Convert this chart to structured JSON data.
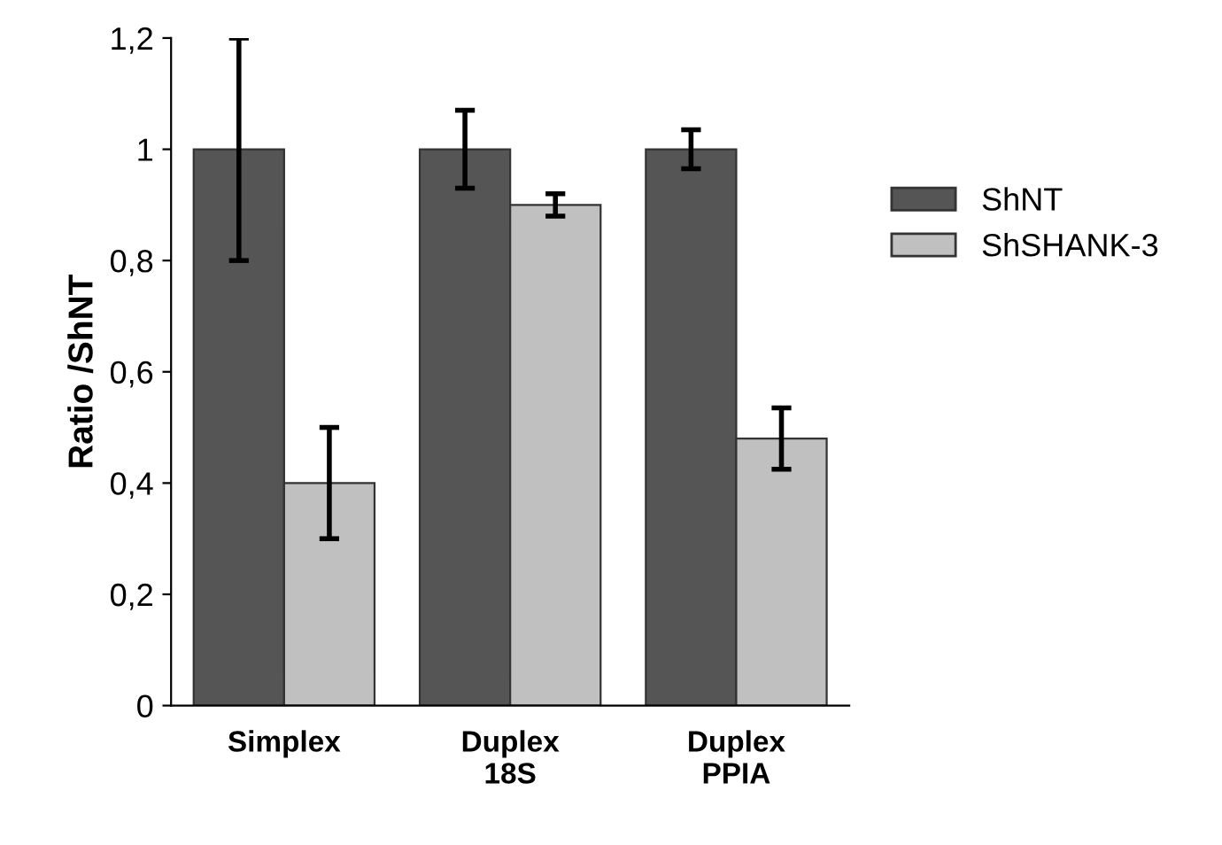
{
  "chart_data": {
    "type": "bar",
    "ylabel": "Ratio /ShNT",
    "categories": [
      "Simplex",
      "Duplex\n18S",
      "Duplex\nPPIA"
    ],
    "series": [
      {
        "name": "ShNT",
        "color": "#555555",
        "values": [
          1.0,
          1.0,
          1.0
        ],
        "errors": [
          0.2,
          0.07,
          0.035
        ]
      },
      {
        "name": "ShSHANK-3",
        "color": "#c0c0c0",
        "values": [
          0.4,
          0.9,
          0.48
        ],
        "errors": [
          0.1,
          0.02,
          0.055
        ]
      }
    ],
    "ylim": [
      0,
      1.2
    ],
    "yticks": [
      {
        "value": 0,
        "label": "0"
      },
      {
        "value": 0.2,
        "label": "0,2"
      },
      {
        "value": 0.4,
        "label": "0,4"
      },
      {
        "value": 0.6,
        "label": "0,6"
      },
      {
        "value": 0.8,
        "label": "0,8"
      },
      {
        "value": 1,
        "label": "1"
      },
      {
        "value": 1.2,
        "label": "1,2"
      }
    ],
    "grid": false,
    "legend": "right"
  }
}
